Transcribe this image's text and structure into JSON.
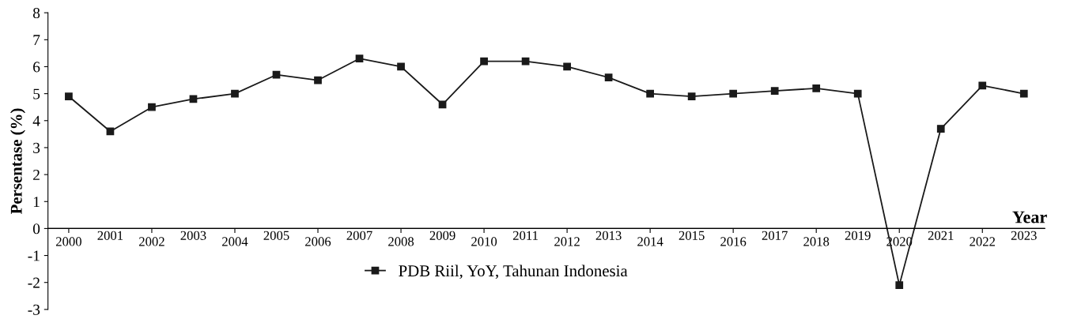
{
  "chart_data": {
    "type": "line",
    "xlabel": "Year",
    "ylabel": "Persentase (%)",
    "categories": [
      "2000",
      "2001",
      "2002",
      "2003",
      "2004",
      "2005",
      "2006",
      "2007",
      "2008",
      "2009",
      "2010",
      "2011",
      "2012",
      "2013",
      "2014",
      "2015",
      "2016",
      "2017",
      "2018",
      "2019",
      "2020",
      "2021",
      "2022",
      "2023"
    ],
    "series": [
      {
        "name": "PDB Riil, YoY, Tahunan Indonesia",
        "color": "#1a1a1a",
        "values": [
          4.9,
          3.6,
          4.5,
          4.8,
          5.0,
          5.7,
          5.5,
          6.3,
          6.0,
          4.6,
          6.2,
          6.2,
          6.0,
          5.6,
          5.0,
          4.9,
          5.0,
          5.1,
          5.2,
          5.0,
          -2.1,
          3.7,
          5.3,
          5.0
        ]
      }
    ],
    "ylim": [
      -3,
      8
    ],
    "yticks": [
      -3,
      -2,
      -1,
      0,
      1,
      2,
      3,
      4,
      5,
      6,
      7,
      8
    ],
    "marker": "square",
    "line_style": "solid",
    "grid": false,
    "legend": "bottom"
  }
}
